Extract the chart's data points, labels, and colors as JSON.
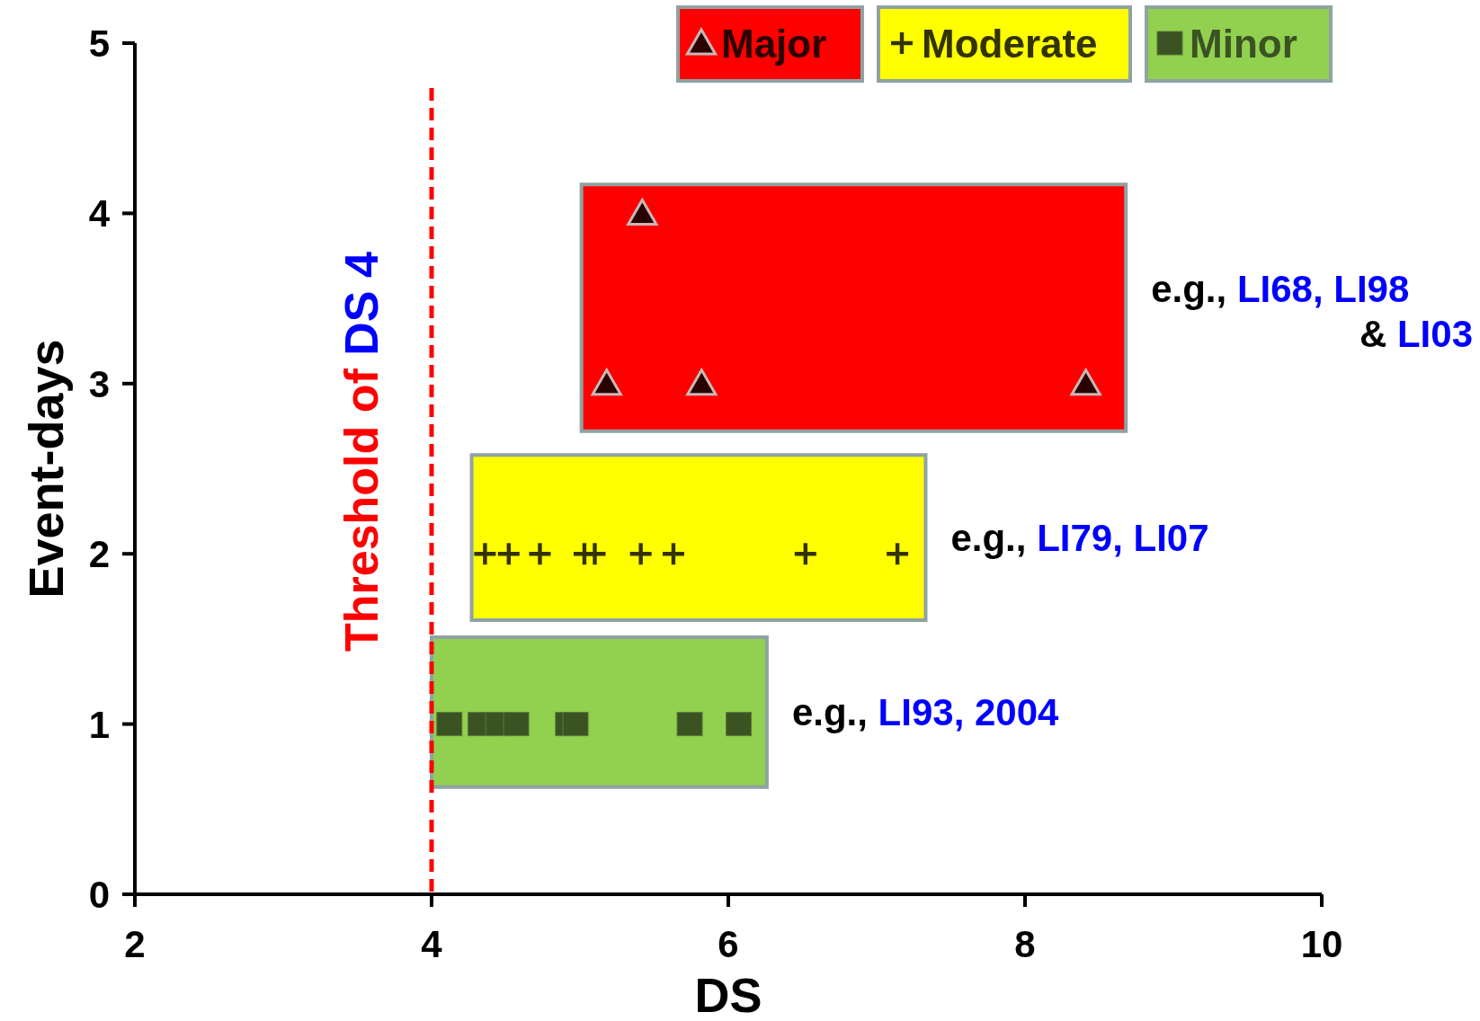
{
  "chart_data": {
    "type": "scatter",
    "xlabel": "DS",
    "ylabel": "Event-days",
    "xlim": [
      2,
      10
    ],
    "ylim": [
      0,
      5
    ],
    "xticks": [
      2,
      4,
      6,
      8,
      10
    ],
    "yticks": [
      0,
      1,
      2,
      3,
      4,
      5
    ],
    "grid": false,
    "legend": "top right",
    "series": [
      {
        "type": "line",
        "color": "#ff0000",
        "x": [
          5.01,
          8.68
        ],
        "values": [
          null,
          null
        ],
        "lower": [
          2.72,
          2.72
        ],
        "upper": [
          4.17,
          4.17
        ]
      },
      {
        "type": "line",
        "color": "#ffff00",
        "x": [
          4.27,
          7.33
        ],
        "values": [
          null,
          null
        ],
        "lower": [
          1.61,
          1.61
        ],
        "upper": [
          2.58,
          2.58
        ]
      },
      {
        "type": "line",
        "color": "#92d050",
        "x": [
          4.0,
          6.26
        ],
        "values": [
          null,
          null
        ],
        "lower": [
          0.63,
          0.63
        ],
        "upper": [
          1.51,
          1.51
        ]
      },
      {
        "name": "Major",
        "marker": "triangle",
        "color": "#2a0000",
        "x": [
          5.42,
          5.18,
          5.82,
          8.41
        ],
        "values": [
          4,
          3,
          3,
          3
        ]
      },
      {
        "name": "Moderate",
        "marker": "cross",
        "color": "#333300",
        "x": [
          4.36,
          4.52,
          4.73,
          5.03,
          5.1,
          5.41,
          5.63,
          6.52,
          7.14
        ],
        "values": [
          2,
          2,
          2,
          2,
          2,
          2,
          2,
          2,
          2
        ]
      },
      {
        "name": "Minor",
        "marker": "square",
        "color": "#3b5323",
        "x": [
          4.12,
          4.33,
          4.45,
          4.57,
          4.92,
          4.97,
          5.74,
          6.07
        ],
        "values": [
          1,
          1,
          1,
          1,
          1,
          1,
          1,
          1
        ]
      }
    ],
    "ref_lines": [
      {
        "axis": "x",
        "value": 4,
        "label": "Threshold of DS 4",
        "color": "#ff0000",
        "line_style": "dashed"
      }
    ],
    "annotations": [
      "e.g., LI68, LI98 & LI03",
      "e.g., LI79, LI07",
      "e.g., LI93, 2004"
    ]
  }
}
